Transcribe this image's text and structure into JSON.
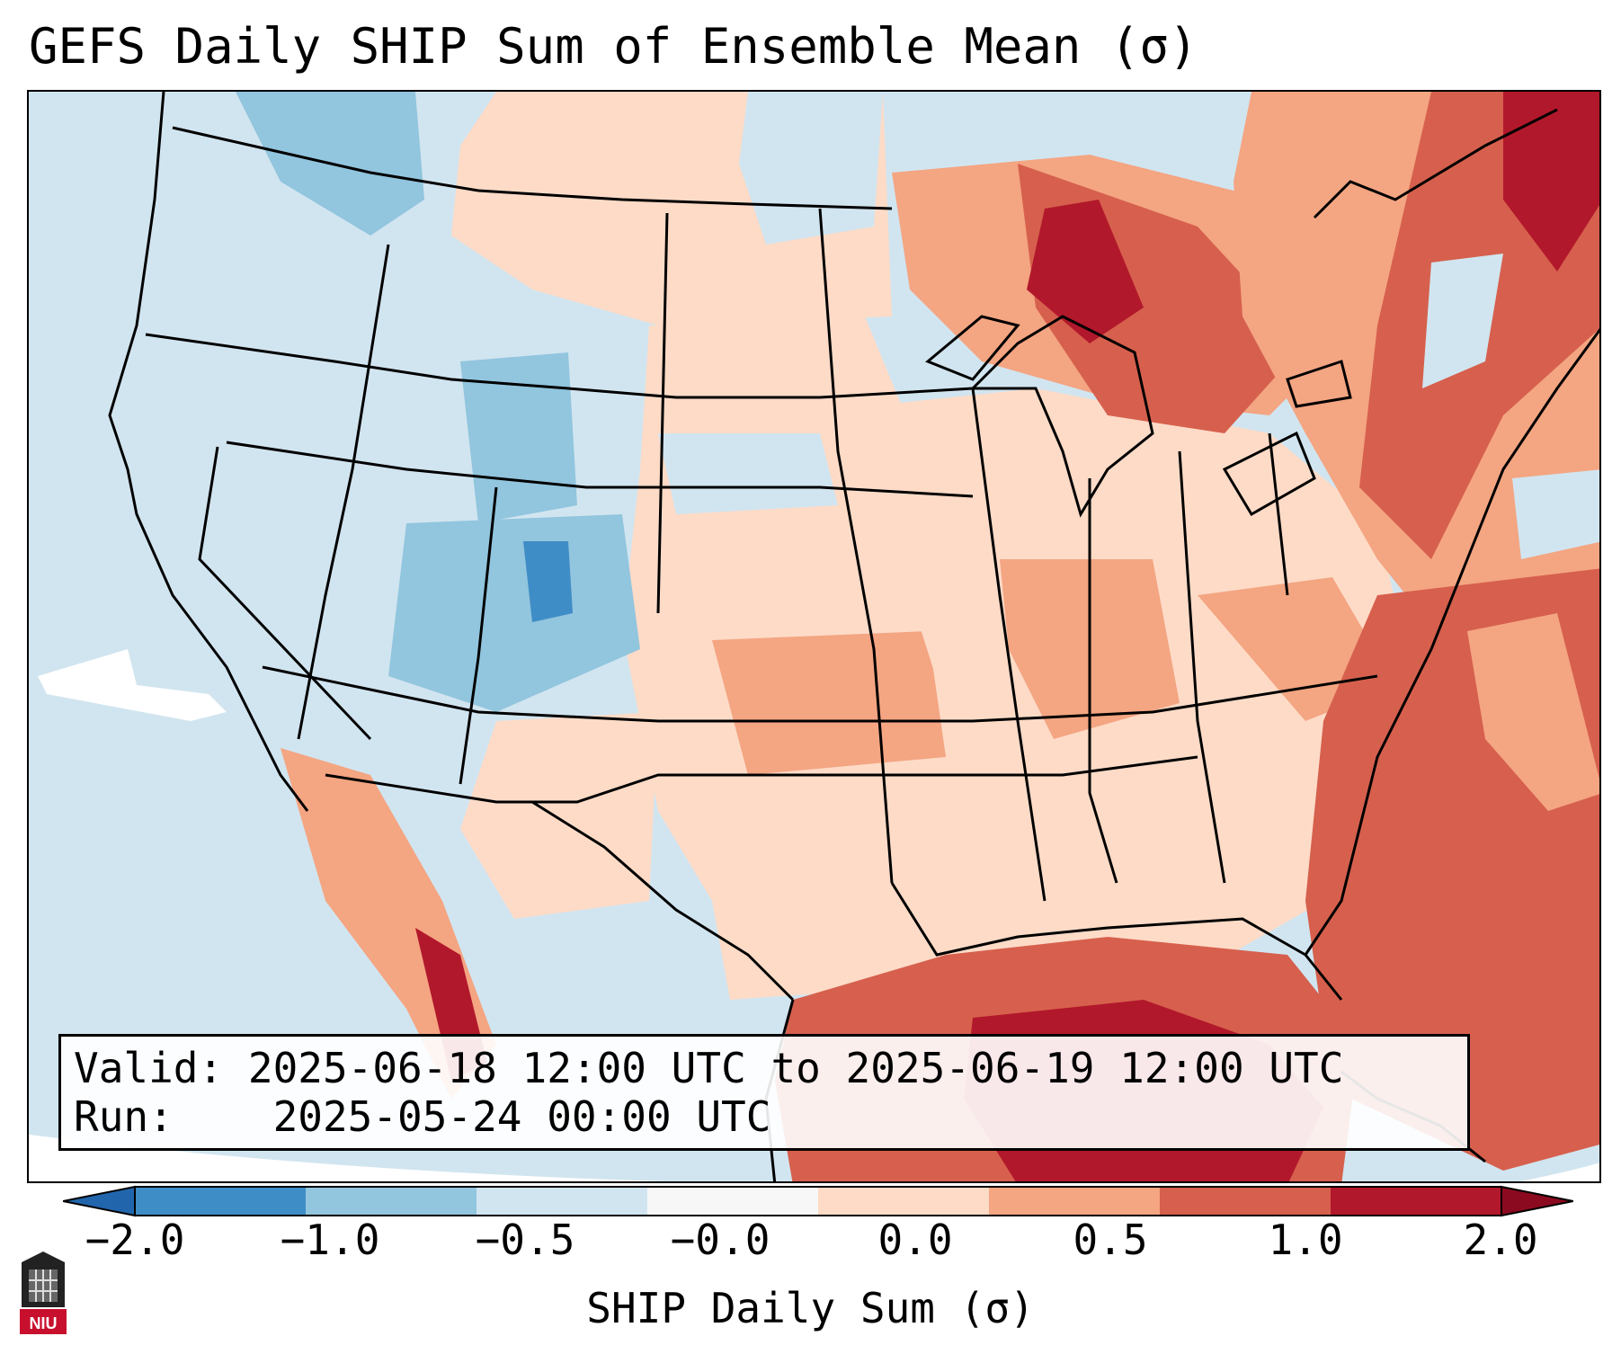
{
  "title": "GEFS Daily SHIP Sum of Ensemble Mean (σ)",
  "info": {
    "valid_label": "Valid:",
    "valid_value": "2025-06-18 12:00 UTC to 2025-06-19 12:00 UTC",
    "run_label": "Run:",
    "run_value": "2025-05-24 00:00 UTC"
  },
  "colorbar": {
    "label": "SHIP Daily Sum (σ)",
    "ticks": [
      "−2.0",
      "−1.0",
      "−0.5",
      "−0.0",
      "0.0",
      "0.5",
      "1.0",
      "2.0"
    ],
    "colors": [
      "#3f8dc6",
      "#92c5de",
      "#d1e5f0",
      "#f7f7f7",
      "#fddbc7",
      "#f4a582",
      "#d6604d",
      "#b2182b"
    ],
    "extend_min_color": "#2166ac",
    "extend_max_color": "#8b0a1f"
  },
  "logo": {
    "text": "NIU"
  },
  "colors": {
    "background_light_blue": "#d1e5f0",
    "state_borders": "#000000"
  }
}
